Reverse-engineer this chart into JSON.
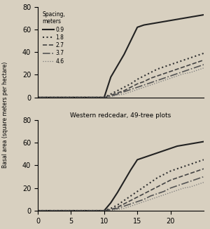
{
  "top_plot": {
    "title": "",
    "legend_title": "Spacing,\nmeters",
    "ylim": [
      0,
      80
    ],
    "xlim": [
      0,
      25
    ],
    "yticks": [
      0,
      20,
      40,
      60,
      80
    ],
    "xticks": [],
    "series": {
      "0.9": {
        "x": [
          0,
          10,
          11,
          12,
          13,
          14,
          15,
          16,
          17,
          18,
          19,
          20,
          21,
          22,
          23,
          24,
          25
        ],
        "y": [
          0,
          0,
          18,
          28,
          38,
          50,
          62,
          64,
          65,
          66,
          67,
          68,
          69,
          70,
          71,
          72,
          73
        ],
        "style": "-",
        "color": "#222222",
        "lw": 1.5
      },
      "1.8": {
        "x": [
          0,
          10,
          11,
          12,
          13,
          14,
          15,
          16,
          17,
          18,
          19,
          20,
          21,
          22,
          23,
          24,
          25
        ],
        "y": [
          0,
          0,
          3,
          6,
          9,
          12,
          16,
          19,
          22,
          25,
          27,
          29,
          31,
          33,
          35,
          37,
          39
        ],
        "style": ":",
        "color": "#333333",
        "lw": 1.5
      },
      "2.7": {
        "x": [
          0,
          10,
          11,
          12,
          13,
          14,
          15,
          16,
          17,
          18,
          19,
          20,
          21,
          22,
          23,
          24,
          25
        ],
        "y": [
          0,
          0,
          2,
          4,
          6,
          9,
          12,
          14,
          17,
          19,
          21,
          23,
          25,
          27,
          29,
          31,
          33
        ],
        "style": "--",
        "color": "#444444",
        "lw": 1.2
      },
      "3.7": {
        "x": [
          0,
          10,
          11,
          12,
          13,
          14,
          15,
          16,
          17,
          18,
          19,
          20,
          21,
          22,
          23,
          24,
          25
        ],
        "y": [
          0,
          0,
          1,
          3,
          5,
          7,
          9,
          11,
          13,
          15,
          17,
          19,
          21,
          23,
          25,
          27,
          29
        ],
        "style": "-.",
        "color": "#555555",
        "lw": 1.2
      },
      "4.6": {
        "x": [
          0,
          10,
          11,
          12,
          13,
          14,
          15,
          16,
          17,
          18,
          19,
          20,
          21,
          22,
          23,
          24,
          25
        ],
        "y": [
          0,
          0,
          1,
          2,
          3,
          5,
          7,
          9,
          11,
          13,
          15,
          17,
          19,
          21,
          22,
          24,
          26
        ],
        "style": ":",
        "color": "#777777",
        "lw": 0.9
      }
    }
  },
  "bottom_plot": {
    "title": "Western redcedar, 49-tree plots",
    "ylim": [
      0,
      80
    ],
    "xlim": [
      0,
      25
    ],
    "yticks": [
      0,
      20,
      40,
      60,
      80
    ],
    "xticks": [
      0,
      5,
      10,
      15,
      20
    ],
    "series": {
      "0.9": {
        "x": [
          0,
          10,
          11,
          12,
          13,
          14,
          15,
          16,
          17,
          18,
          19,
          20,
          21,
          22,
          23,
          24,
          25
        ],
        "y": [
          0,
          0,
          7,
          16,
          26,
          36,
          45,
          47,
          49,
          51,
          53,
          55,
          57,
          58,
          59,
          60,
          61
        ],
        "style": "-",
        "color": "#222222",
        "lw": 1.5
      },
      "1.8": {
        "x": [
          0,
          10,
          11,
          12,
          13,
          14,
          15,
          16,
          17,
          18,
          19,
          20,
          21,
          22,
          23,
          24,
          25
        ],
        "y": [
          0,
          0,
          2,
          5,
          9,
          13,
          17,
          21,
          25,
          29,
          32,
          35,
          37,
          39,
          41,
          43,
          45
        ],
        "style": ":",
        "color": "#333333",
        "lw": 1.5
      },
      "2.7": {
        "x": [
          0,
          10,
          11,
          12,
          13,
          14,
          15,
          16,
          17,
          18,
          19,
          20,
          21,
          22,
          23,
          24,
          25
        ],
        "y": [
          0,
          0,
          1,
          3,
          6,
          9,
          12,
          15,
          18,
          21,
          24,
          27,
          29,
          31,
          33,
          35,
          37
        ],
        "style": "--",
        "color": "#444444",
        "lw": 1.2
      },
      "3.7": {
        "x": [
          0,
          10,
          11,
          12,
          13,
          14,
          15,
          16,
          17,
          18,
          19,
          20,
          21,
          22,
          23,
          24,
          25
        ],
        "y": [
          0,
          0,
          1,
          2,
          4,
          6,
          8,
          10,
          13,
          15,
          17,
          20,
          22,
          24,
          26,
          28,
          30
        ],
        "style": "-.",
        "color": "#555555",
        "lw": 1.2
      },
      "4.6": {
        "x": [
          0,
          10,
          11,
          12,
          13,
          14,
          15,
          16,
          17,
          18,
          19,
          20,
          21,
          22,
          23,
          24,
          25
        ],
        "y": [
          0,
          0,
          0,
          1,
          2,
          4,
          6,
          8,
          10,
          12,
          14,
          16,
          18,
          20,
          21,
          23,
          25
        ],
        "style": ":",
        "color": "#777777",
        "lw": 0.9
      }
    }
  },
  "ylabel": "Basal area (square meters per hectare)",
  "xlabel": "",
  "bg_color": "#d8d0c0",
  "plot_bg": "#d8d0c0",
  "spacing_labels": [
    "0.9",
    "1.8",
    "2.7",
    "3.7",
    "4.6"
  ]
}
